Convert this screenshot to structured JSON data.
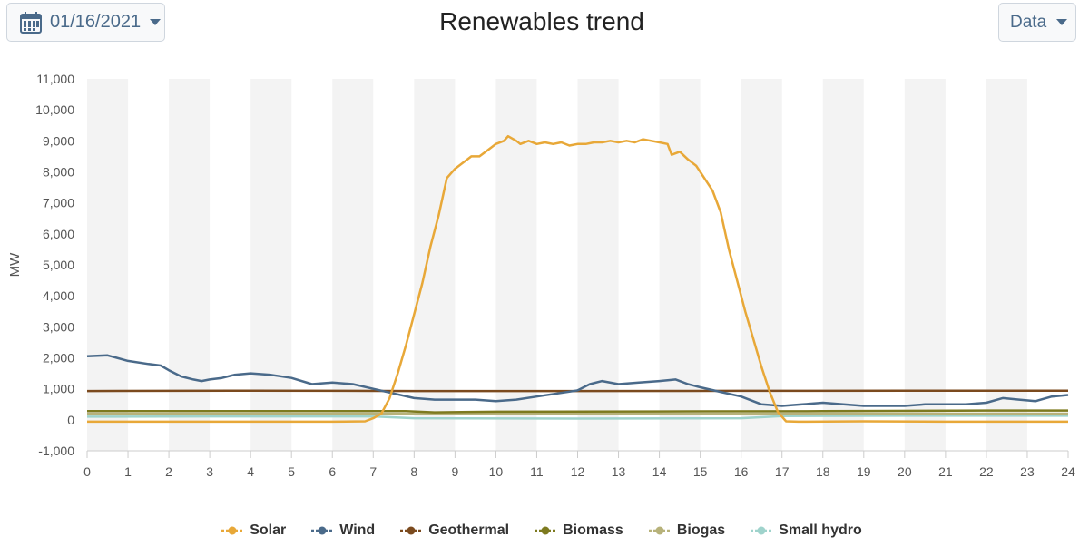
{
  "header": {
    "date": "01/16/2021",
    "title": "Renewables trend",
    "data_label": "Data"
  },
  "chart_data": {
    "type": "line",
    "title": "Renewables trend",
    "xlabel": "",
    "ylabel": "MW",
    "xlim": [
      0,
      24
    ],
    "ylim": [
      -1000,
      11000
    ],
    "x_ticks": [
      0,
      1,
      2,
      3,
      4,
      5,
      6,
      7,
      8,
      9,
      10,
      11,
      12,
      13,
      14,
      15,
      16,
      17,
      18,
      19,
      20,
      21,
      22,
      23,
      24
    ],
    "y_ticks": [
      -1000,
      0,
      1000,
      2000,
      3000,
      4000,
      5000,
      6000,
      7000,
      8000,
      9000,
      10000,
      11000
    ],
    "y_tick_labels": [
      "-1,000",
      "0",
      "1,000",
      "2,000",
      "3,000",
      "4,000",
      "5,000",
      "6,000",
      "7,000",
      "8,000",
      "9,000",
      "10,000",
      "11,000"
    ],
    "grid": "alternating vertical bands",
    "legend_position": "bottom",
    "series": [
      {
        "name": "Solar",
        "color": "#e8a838",
        "points": [
          [
            0,
            -60
          ],
          [
            2,
            -60
          ],
          [
            4,
            -60
          ],
          [
            6,
            -60
          ],
          [
            6.8,
            -50
          ],
          [
            7.0,
            50
          ],
          [
            7.2,
            200
          ],
          [
            7.4,
            700
          ],
          [
            7.6,
            1500
          ],
          [
            7.8,
            2400
          ],
          [
            8.0,
            3400
          ],
          [
            8.2,
            4400
          ],
          [
            8.4,
            5600
          ],
          [
            8.6,
            6600
          ],
          [
            8.8,
            7800
          ],
          [
            9.0,
            8100
          ],
          [
            9.2,
            8300
          ],
          [
            9.4,
            8500
          ],
          [
            9.6,
            8500
          ],
          [
            9.8,
            8700
          ],
          [
            10.0,
            8900
          ],
          [
            10.2,
            9000
          ],
          [
            10.3,
            9150
          ],
          [
            10.5,
            9000
          ],
          [
            10.6,
            8900
          ],
          [
            10.8,
            9000
          ],
          [
            11.0,
            8900
          ],
          [
            11.2,
            8950
          ],
          [
            11.4,
            8900
          ],
          [
            11.6,
            8950
          ],
          [
            11.8,
            8850
          ],
          [
            12.0,
            8900
          ],
          [
            12.2,
            8900
          ],
          [
            12.4,
            8950
          ],
          [
            12.6,
            8950
          ],
          [
            12.8,
            9000
          ],
          [
            13.0,
            8950
          ],
          [
            13.2,
            9000
          ],
          [
            13.4,
            8950
          ],
          [
            13.6,
            9050
          ],
          [
            13.8,
            9000
          ],
          [
            14.0,
            8950
          ],
          [
            14.2,
            8900
          ],
          [
            14.3,
            8550
          ],
          [
            14.5,
            8650
          ],
          [
            14.7,
            8400
          ],
          [
            14.9,
            8200
          ],
          [
            15.1,
            7800
          ],
          [
            15.3,
            7400
          ],
          [
            15.5,
            6700
          ],
          [
            15.7,
            5500
          ],
          [
            15.9,
            4500
          ],
          [
            16.1,
            3500
          ],
          [
            16.3,
            2600
          ],
          [
            16.5,
            1700
          ],
          [
            16.7,
            900
          ],
          [
            16.9,
            250
          ],
          [
            17.1,
            -50
          ],
          [
            17.4,
            -60
          ],
          [
            19,
            -50
          ],
          [
            21,
            -60
          ],
          [
            23,
            -60
          ],
          [
            24,
            -60
          ]
        ]
      },
      {
        "name": "Wind",
        "color": "#4a6a8a",
        "points": [
          [
            0,
            2050
          ],
          [
            0.5,
            2080
          ],
          [
            1.0,
            1900
          ],
          [
            1.5,
            1800
          ],
          [
            1.8,
            1750
          ],
          [
            2.0,
            1600
          ],
          [
            2.3,
            1400
          ],
          [
            2.6,
            1300
          ],
          [
            2.8,
            1250
          ],
          [
            3.0,
            1300
          ],
          [
            3.3,
            1350
          ],
          [
            3.6,
            1450
          ],
          [
            4.0,
            1500
          ],
          [
            4.5,
            1450
          ],
          [
            5.0,
            1350
          ],
          [
            5.5,
            1150
          ],
          [
            6.0,
            1200
          ],
          [
            6.5,
            1150
          ],
          [
            7.0,
            1000
          ],
          [
            7.5,
            850
          ],
          [
            8.0,
            700
          ],
          [
            8.5,
            650
          ],
          [
            9.0,
            650
          ],
          [
            9.5,
            650
          ],
          [
            10.0,
            600
          ],
          [
            10.5,
            650
          ],
          [
            11.0,
            750
          ],
          [
            11.5,
            850
          ],
          [
            12.0,
            950
          ],
          [
            12.3,
            1150
          ],
          [
            12.6,
            1250
          ],
          [
            13.0,
            1150
          ],
          [
            13.5,
            1200
          ],
          [
            14.0,
            1250
          ],
          [
            14.4,
            1300
          ],
          [
            14.7,
            1150
          ],
          [
            15.0,
            1050
          ],
          [
            15.5,
            900
          ],
          [
            16.0,
            750
          ],
          [
            16.5,
            500
          ],
          [
            17.0,
            450
          ],
          [
            17.5,
            500
          ],
          [
            18.0,
            550
          ],
          [
            18.5,
            500
          ],
          [
            19.0,
            450
          ],
          [
            19.5,
            450
          ],
          [
            20.0,
            450
          ],
          [
            20.5,
            500
          ],
          [
            21.0,
            500
          ],
          [
            21.5,
            500
          ],
          [
            22.0,
            550
          ],
          [
            22.4,
            700
          ],
          [
            22.8,
            650
          ],
          [
            23.2,
            600
          ],
          [
            23.6,
            750
          ],
          [
            24.0,
            800
          ]
        ]
      },
      {
        "name": "Geothermal",
        "color": "#7b4a1e",
        "points": [
          [
            0,
            930
          ],
          [
            4,
            940
          ],
          [
            8,
            930
          ],
          [
            12,
            930
          ],
          [
            16,
            935
          ],
          [
            20,
            940
          ],
          [
            24,
            940
          ]
        ]
      },
      {
        "name": "Biomass",
        "color": "#7d7a1f",
        "points": [
          [
            0,
            280
          ],
          [
            4,
            280
          ],
          [
            7.8,
            280
          ],
          [
            8.5,
            240
          ],
          [
            10,
            260
          ],
          [
            14,
            270
          ],
          [
            18,
            280
          ],
          [
            22,
            300
          ],
          [
            24,
            300
          ]
        ]
      },
      {
        "name": "Biogas",
        "color": "#b7b27a",
        "points": [
          [
            0,
            190
          ],
          [
            4,
            195
          ],
          [
            8,
            190
          ],
          [
            12,
            190
          ],
          [
            16,
            190
          ],
          [
            20,
            200
          ],
          [
            24,
            200
          ]
        ]
      },
      {
        "name": "Small hydro",
        "color": "#9fd3cc",
        "points": [
          [
            0,
            100
          ],
          [
            3,
            110
          ],
          [
            7,
            110
          ],
          [
            8,
            50
          ],
          [
            12,
            40
          ],
          [
            16,
            50
          ],
          [
            17,
            120
          ],
          [
            20,
            130
          ],
          [
            24,
            130
          ]
        ]
      }
    ]
  }
}
